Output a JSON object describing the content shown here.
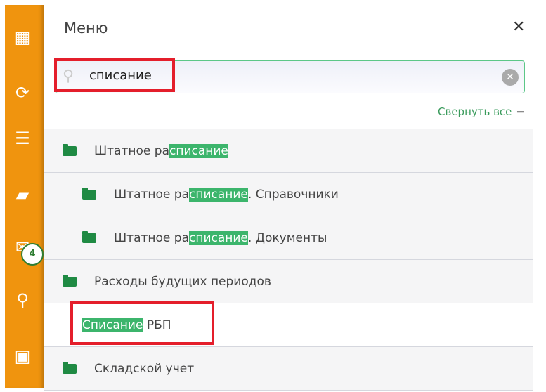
{
  "sidebar": {
    "items": [
      {
        "icon": "qr-code-icon"
      },
      {
        "icon": "sync-icon"
      },
      {
        "icon": "download-list-icon"
      },
      {
        "icon": "folder-open-icon"
      },
      {
        "icon": "mail-icon",
        "badge": "4"
      },
      {
        "icon": "search-icon"
      },
      {
        "icon": "calendar-icon"
      }
    ]
  },
  "menu": {
    "title": "Меню",
    "search_value": "списание",
    "collapse_all": "Свернуть все",
    "items": [
      {
        "pre": "Штатное ра",
        "match": "списание",
        "post": "",
        "folder": true,
        "level": 0
      },
      {
        "pre": "Штатное ра",
        "match": "списание",
        "post": ". Справочники",
        "folder": true,
        "level": 1
      },
      {
        "pre": "Штатное ра",
        "match": "списание",
        "post": ". Документы",
        "folder": true,
        "level": 1
      },
      {
        "pre": "Расходы будущих периодов",
        "match": "",
        "post": "",
        "folder": true,
        "level": 0
      },
      {
        "pre": "",
        "match": "Списание",
        "post": " РБП",
        "folder": false,
        "level": 1
      },
      {
        "pre": "Складской учет",
        "match": "",
        "post": "",
        "folder": true,
        "level": 0
      }
    ]
  },
  "colors": {
    "sidebar": "#f0940e",
    "accent": "#3cb56c",
    "highlight_box": "#e41e2b"
  }
}
